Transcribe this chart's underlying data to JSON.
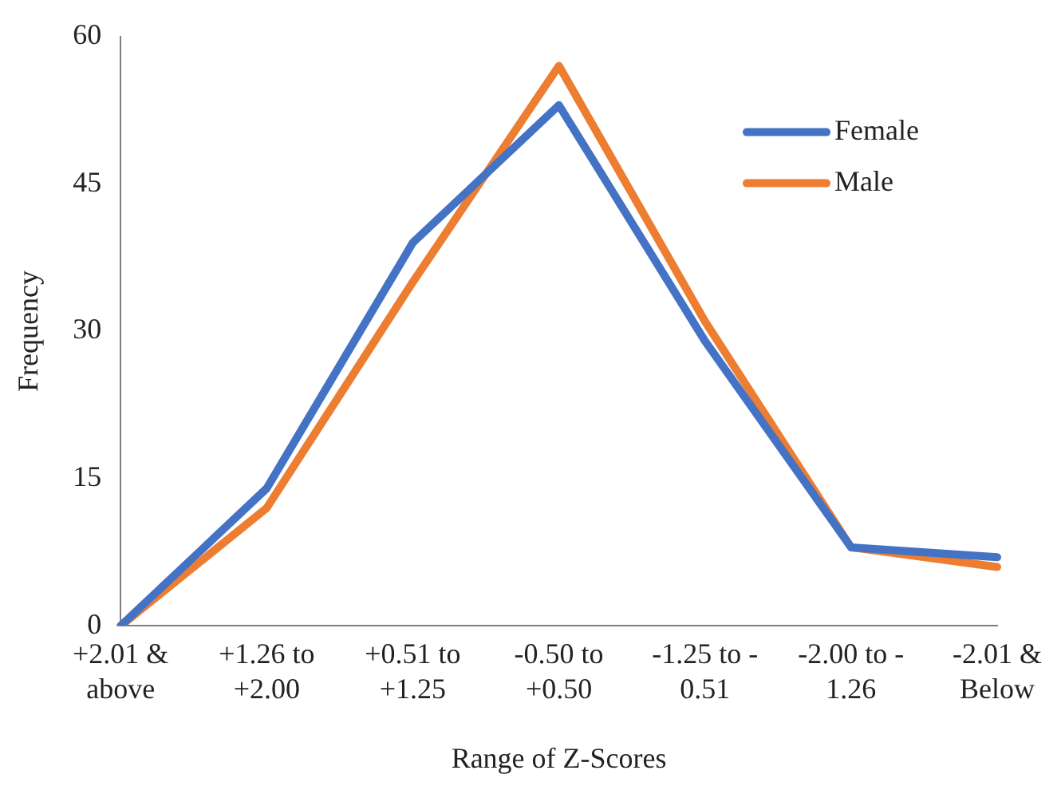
{
  "chart_data": {
    "type": "line",
    "xlabel": "Range of Z-Scores",
    "ylabel": "Frequency",
    "categories": [
      "+2.01 & above",
      "+1.26 to +2.00",
      "+0.51 to +1.25",
      "-0.50 to +0.50",
      "-1.25 to - 0.51",
      "-2.00 to - 1.26",
      "-2.01 & Below"
    ],
    "series": [
      {
        "name": "Female",
        "color": "#4472c4",
        "values": [
          0,
          14,
          39,
          53,
          29,
          8,
          7
        ]
      },
      {
        "name": "Male",
        "color": "#ed7d31",
        "values": [
          0,
          12,
          35,
          57,
          31,
          8,
          6
        ]
      }
    ],
    "ylim": [
      0,
      60
    ],
    "yticks": [
      0,
      15,
      30,
      45,
      60
    ],
    "grid": false,
    "legend": "top right",
    "marker": "none",
    "line_style": "solid"
  }
}
